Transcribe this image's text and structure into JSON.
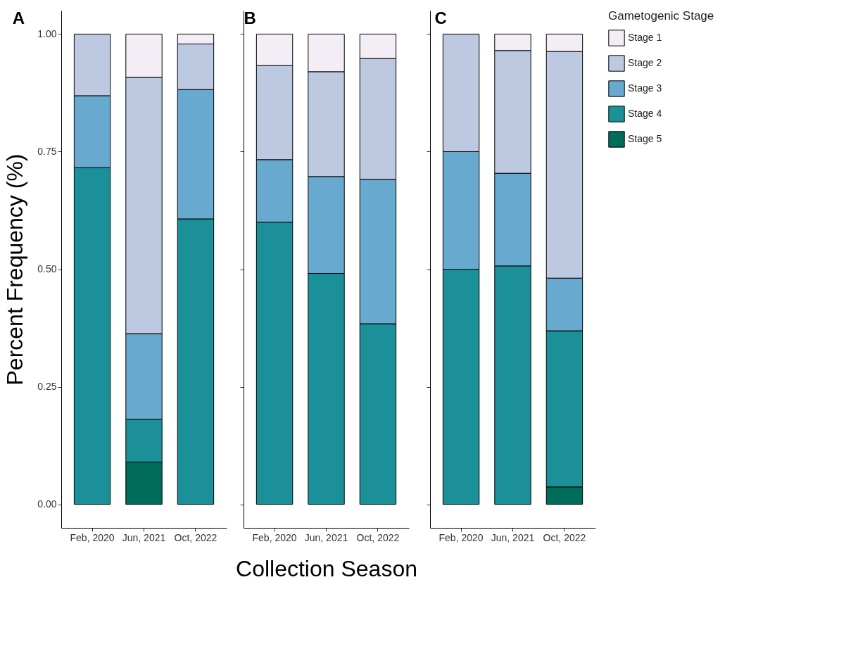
{
  "chart_data": [
    {
      "type": "bar",
      "title": "A",
      "ylabel": "Percent Frequency (%)",
      "categories": [
        "Feb, 2020",
        "Jun, 2021",
        "Oct, 2022"
      ],
      "stacked": true,
      "ylim": [
        -0.05,
        1.05
      ],
      "yticks": [
        {
          "value": 0,
          "label": "0.00"
        },
        {
          "value": 0.25,
          "label": "0.25"
        },
        {
          "value": 0.5,
          "label": "0.50"
        },
        {
          "value": 0.75,
          "label": "0.75"
        },
        {
          "value": 1,
          "label": "1.00"
        }
      ],
      "grid": false,
      "legend": "right",
      "series": [
        {
          "name": "Stage 5",
          "color": "#016c59",
          "values": [
            null,
            0.09,
            null
          ]
        },
        {
          "name": "Stage 4",
          "color": "#1c9099",
          "values": [
            0.716,
            0.091,
            0.607
          ]
        },
        {
          "name": "Stage 3",
          "color": "#67a9cf",
          "values": [
            0.153,
            0.182,
            0.275
          ]
        },
        {
          "name": "Stage 2",
          "color": "#bdc9e1",
          "values": [
            0.131,
            0.545,
            0.097
          ]
        },
        {
          "name": "Stage 1",
          "color": "#f3eef6",
          "values": [
            null,
            0.092,
            0.021
          ]
        }
      ]
    },
    {
      "type": "bar",
      "title": "B",
      "xlabel": "Collection Season",
      "categories": [
        "Feb, 2020",
        "Jun, 2021",
        "Oct, 2022"
      ],
      "stacked": true,
      "ylim": [
        -0.05,
        1.05
      ],
      "yticks": [
        {
          "value": 0,
          "label": null
        },
        {
          "value": 0.25,
          "label": null
        },
        {
          "value": 0.5,
          "label": null
        },
        {
          "value": 0.75,
          "label": null
        },
        {
          "value": 1,
          "label": null
        }
      ],
      "tick_labels": "x",
      "grid": false,
      "legend": "right",
      "series": [
        {
          "name": "Stage 5",
          "color": "#016c59",
          "values": [
            null,
            null,
            null
          ]
        },
        {
          "name": "Stage 4",
          "color": "#1c9099",
          "values": [
            0.6,
            0.491,
            0.384
          ]
        },
        {
          "name": "Stage 3",
          "color": "#67a9cf",
          "values": [
            0.133,
            0.206,
            0.307
          ]
        },
        {
          "name": "Stage 2",
          "color": "#bdc9e1",
          "values": [
            0.2,
            0.223,
            0.257
          ]
        },
        {
          "name": "Stage 1",
          "color": "#f3eef6",
          "values": [
            0.067,
            0.08,
            0.052
          ]
        }
      ]
    },
    {
      "type": "bar",
      "title": "C",
      "legend_title": "Gametogenic Stage",
      "categories": [
        "Feb, 2020",
        "Jun, 2021",
        "Oct, 2022"
      ],
      "stacked": true,
      "ylim": [
        -0.05,
        1.05
      ],
      "yticks": [
        {
          "value": 0,
          "label": null
        },
        {
          "value": 0.25,
          "label": null
        },
        {
          "value": 0.5,
          "label": null
        },
        {
          "value": 0.75,
          "label": null
        },
        {
          "value": 1,
          "label": null
        }
      ],
      "tick_labels": "x",
      "grid": false,
      "legend": "right",
      "series": [
        {
          "name": "Stage 5",
          "color": "#016c59",
          "values": [
            null,
            null,
            0.037
          ]
        },
        {
          "name": "Stage 4",
          "color": "#1c9099",
          "values": [
            0.5,
            0.507,
            0.332
          ]
        },
        {
          "name": "Stage 3",
          "color": "#67a9cf",
          "values": [
            0.25,
            0.197,
            0.112
          ]
        },
        {
          "name": "Stage 2",
          "color": "#bdc9e1",
          "values": [
            0.25,
            0.261,
            0.482
          ]
        },
        {
          "name": "Stage 1",
          "color": "#f3eef6",
          "values": [
            null,
            0.035,
            0.037
          ]
        }
      ]
    }
  ]
}
